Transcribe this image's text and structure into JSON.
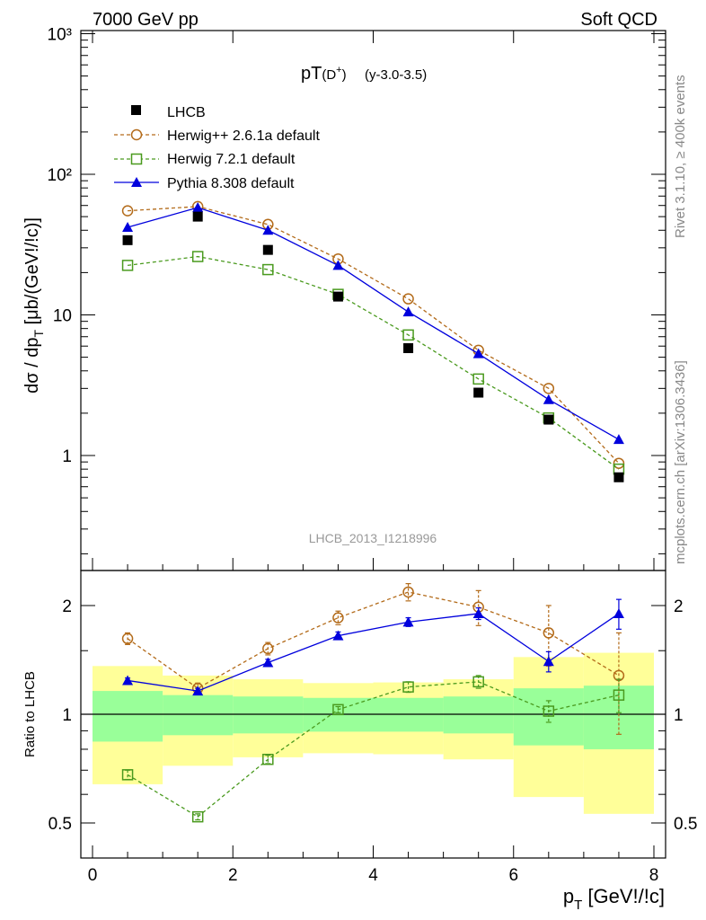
{
  "chart_data": {
    "type": "scatter",
    "header_left": "7000 GeV pp",
    "header_right": "Soft QCD",
    "title": "pT",
    "title_sub": "(D",
    "title_sup": "+",
    "title_close": ")",
    "title_suffix": "(y-3.0-3.5)",
    "ylabel": "dσ / dp_T [μb/(GeV!/!c)]",
    "ylabel_main": "dσ / dp",
    "ylabel_sub": "T",
    "ylabel_tail": " [μb/(GeV!/!c)]",
    "xlabel_main": "p",
    "xlabel_sub": "T",
    "xlabel_tail": " [GeV!/!c]",
    "ratio_ylabel": "Ratio to LHCB",
    "watermark": "LHCB_2013_I1218996",
    "side_label_1": "Rivet 3.1.10, ≥ 400k events",
    "side_label_2": "mcplots.cern.ch [arXiv:1306.3436]",
    "xlim": [
      0,
      8
    ],
    "ylim_log": [
      0.2,
      1000
    ],
    "ratio_ylim": [
      0.4,
      2.35
    ],
    "x_ticks": [
      "0",
      "2",
      "4",
      "6",
      "8"
    ],
    "y_ticks_main": [
      "1",
      "10",
      "10²",
      "10³"
    ],
    "y_ticks_ratio": [
      "0.5",
      "1",
      "2"
    ],
    "x": [
      0.5,
      1.5,
      2.5,
      3.5,
      4.5,
      5.5,
      6.5,
      7.5
    ],
    "bin_edges": [
      0,
      1,
      2,
      3,
      4,
      5,
      6,
      7,
      8
    ],
    "series": [
      {
        "name": "LHCB",
        "color": "#000000",
        "marker": "filled-square",
        "values": [
          34,
          50,
          29,
          13.5,
          5.8,
          2.8,
          1.8,
          0.7
        ]
      },
      {
        "name": "Herwig++ 2.6.1a default",
        "color": "#b36b1a",
        "marker": "open-circle",
        "values": [
          55,
          59,
          44,
          25,
          13,
          5.6,
          3.0,
          0.88
        ],
        "ratio": [
          1.62,
          1.18,
          1.52,
          1.85,
          2.18,
          1.98,
          1.68,
          1.28
        ],
        "ratio_err": [
          0.06,
          0.04,
          0.06,
          0.08,
          0.12,
          0.22,
          0.32,
          0.4
        ]
      },
      {
        "name": "Herwig 7.2.1 default",
        "color": "#4a9a1e",
        "marker": "open-square",
        "values": [
          22.5,
          26,
          21,
          14,
          7.2,
          3.5,
          1.85,
          0.8
        ],
        "ratio": [
          0.68,
          0.52,
          0.75,
          1.03,
          1.19,
          1.23,
          1.02,
          1.13
        ],
        "ratio_err": [
          0.02,
          0.01,
          0.02,
          0.02,
          0.04,
          0.05,
          0.07,
          0.12
        ]
      },
      {
        "name": "Pythia 8.308 default",
        "color": "#0000dd",
        "marker": "filled-triangle",
        "values": [
          42,
          58,
          40,
          22.5,
          10.5,
          5.3,
          2.5,
          1.3
        ],
        "ratio": [
          1.24,
          1.16,
          1.39,
          1.65,
          1.8,
          1.9,
          1.4,
          1.9
        ],
        "ratio_err": [
          0.02,
          0.02,
          0.03,
          0.04,
          0.05,
          0.07,
          0.09,
          0.18
        ]
      }
    ],
    "band_green": [
      [
        0.84,
        1.16
      ],
      [
        0.875,
        1.13
      ],
      [
        0.885,
        1.12
      ],
      [
        0.895,
        1.11
      ],
      [
        0.895,
        1.11
      ],
      [
        0.885,
        1.12
      ],
      [
        0.82,
        1.18
      ],
      [
        0.8,
        1.2
      ]
    ],
    "band_yellow": [
      [
        0.64,
        1.36
      ],
      [
        0.72,
        1.28
      ],
      [
        0.76,
        1.25
      ],
      [
        0.78,
        1.22
      ],
      [
        0.775,
        1.225
      ],
      [
        0.75,
        1.25
      ],
      [
        0.59,
        1.44
      ],
      [
        0.53,
        1.48
      ]
    ]
  }
}
